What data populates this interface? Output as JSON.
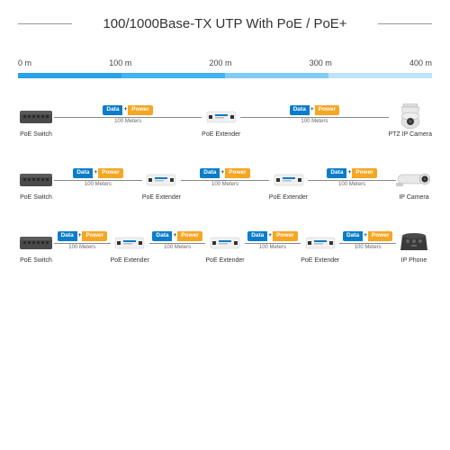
{
  "title": "100/1000Base-TX UTP With PoE / PoE+",
  "ruler": {
    "labels": [
      "0 m",
      "100 m",
      "200 m",
      "300 m",
      "400 m"
    ],
    "segment_colors": [
      "#2aa3e8",
      "#3fb4f0",
      "#7fcdf5",
      "#bfe4f9"
    ],
    "label_color": "#444444"
  },
  "badge": {
    "data_label": "Data",
    "data_bg": "#0a7cc9",
    "plus_label": "+",
    "power_label": "Power",
    "power_bg": "#f5a623"
  },
  "link_distance": "100 Meters",
  "devices": {
    "switch": "PoE Switch",
    "extender": "PoE Extender",
    "ptz": "PTZ IP Camera",
    "ipcam": "IP Camera",
    "phone": "IP Phone"
  },
  "chains": [
    {
      "nodes": [
        "switch",
        "extender",
        "ptz"
      ]
    },
    {
      "nodes": [
        "switch",
        "extender",
        "extender",
        "ipcam"
      ]
    },
    {
      "nodes": [
        "switch",
        "extender",
        "extender",
        "extender",
        "phone"
      ]
    }
  ],
  "colors": {
    "title_text": "#333333",
    "title_line": "#999999",
    "link_line": "#888888",
    "node_label": "#333333",
    "background": "#ffffff"
  }
}
